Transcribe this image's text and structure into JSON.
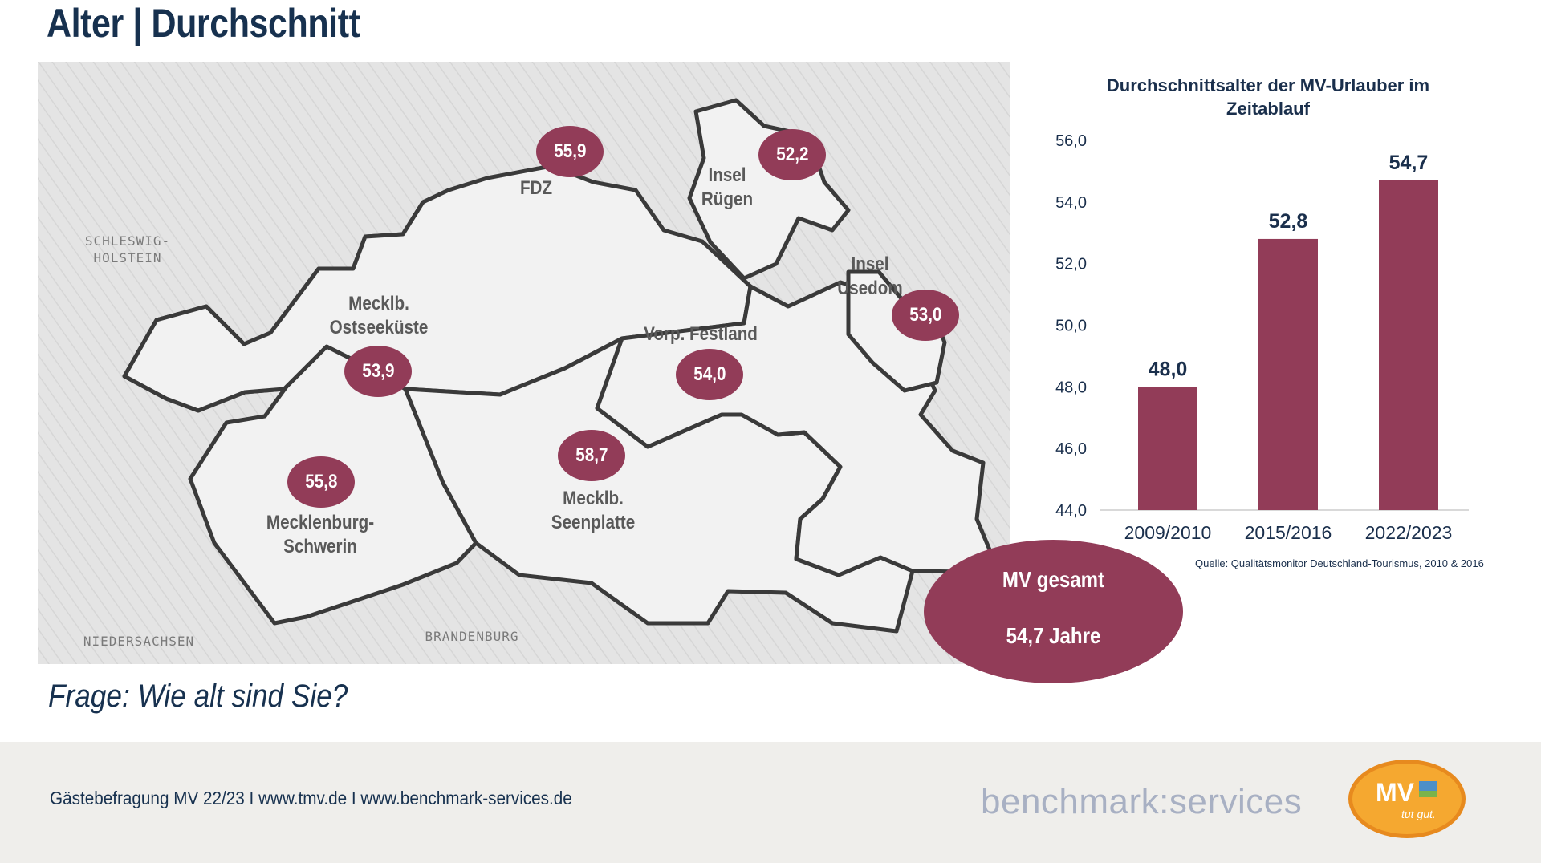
{
  "page": {
    "title": "Alter | Durchschnitt",
    "question": "Frage: Wie alt sind Sie?"
  },
  "map": {
    "regions": [
      {
        "id": "fdz",
        "label": "FDZ",
        "value": "55,9"
      },
      {
        "id": "ruegen",
        "label": "Insel\nRügen",
        "value": "52,2"
      },
      {
        "id": "usedom",
        "label": "Insel\nUsedom",
        "value": "53,0"
      },
      {
        "id": "ostsee",
        "label": "Mecklb.\nOstseeküste",
        "value": "53,9"
      },
      {
        "id": "vorp",
        "label": "Vorp. Festland",
        "value": "54,0"
      },
      {
        "id": "seenplatte",
        "label": "Mecklb.\nSeenplatte",
        "value": "58,7"
      },
      {
        "id": "schwerin",
        "label": "Mecklenburg-\nSchwerin",
        "value": "55,8"
      }
    ],
    "neighbors": [
      "SCHLESWIG-\nHOLSTEIN",
      "NIEDERSACHSEN",
      "BRANDENBURG"
    ],
    "total": {
      "label": "MV gesamt",
      "value": "54,7 Jahre"
    }
  },
  "chart_data": {
    "type": "bar",
    "title": "Durchschnittsalter der MV-Urlauber im Zeitablauf",
    "categories": [
      "2009/2010",
      "2015/2016",
      "2022/2023"
    ],
    "values": [
      48.0,
      52.8,
      54.7
    ],
    "value_labels": [
      "48,0",
      "52,8",
      "54,7"
    ],
    "ylim": [
      44.0,
      56.0
    ],
    "yticks": [
      "44,0",
      "46,0",
      "48,0",
      "50,0",
      "52,0",
      "54,0",
      "56,0"
    ],
    "grid": false,
    "bar_color": "#923c58",
    "source": "Quelle: Qualitätsmonitor Deutschland-Tourismus, 2010 & 2016"
  },
  "footer": {
    "text": "Gästebefragung MV 22/23  I  www.tmv.de  I www.benchmark-services.de",
    "brand": "benchmark:services",
    "logo_text": "MV",
    "logo_slogan": "tut gut."
  },
  "colors": {
    "accent": "#923c58",
    "title": "#17314f",
    "footer_bg": "#efeeeb"
  }
}
